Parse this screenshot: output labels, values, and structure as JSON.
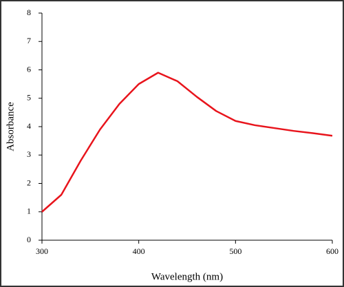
{
  "chart_data": {
    "type": "line",
    "x_label": "Wavelength (nm)",
    "y_label": "Absorbance",
    "x": [
      300,
      320,
      340,
      360,
      380,
      400,
      420,
      440,
      460,
      480,
      500,
      520,
      540,
      560,
      580,
      600
    ],
    "series": [
      {
        "name": "Absorbance",
        "color": "#e8141c",
        "values": [
          1.0,
          1.6,
          2.8,
          3.9,
          4.8,
          5.5,
          5.9,
          5.6,
          5.05,
          4.55,
          4.2,
          4.05,
          3.95,
          3.85,
          3.77,
          3.68
        ]
      }
    ],
    "xlim": [
      300,
      600
    ],
    "xticks": [
      300,
      400,
      500,
      600
    ],
    "ylim": [
      0,
      8
    ],
    "yticks": [
      0,
      1,
      2,
      3,
      4,
      5,
      6,
      7,
      8
    ]
  }
}
